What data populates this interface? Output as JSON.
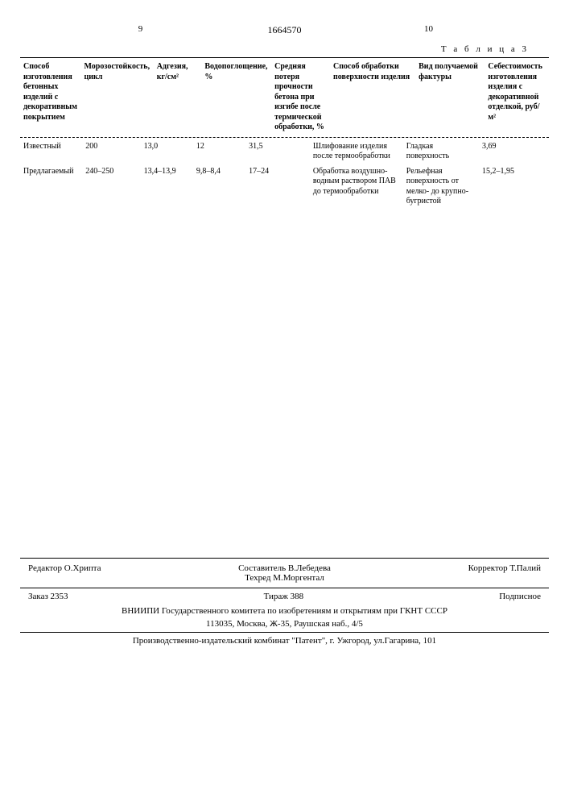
{
  "header": {
    "left_page": "9",
    "doc_number": "1664570",
    "right_page": "10"
  },
  "table": {
    "caption": "Т а б л и ц а  3",
    "columns": [
      "Способ изготовления бетонных изделий с декоративным покрытием",
      "Морозостойкость, цикл",
      "Адгезия, кг/см²",
      "Водопоглощение, %",
      "Средняя потеря прочности бетона при изгибе после термической обработки, %",
      "Способ обработки поверхности изделия",
      "Вид получаемой фактуры",
      "Себестоимость изготовления изделия с декоративной отделкой, руб/м²"
    ],
    "rows": [
      {
        "c0": "Известный",
        "c1": "200",
        "c2": "13,0",
        "c3": "12",
        "c4": "31,5",
        "c5": "Шлифование изделия после термообработки",
        "c6": "Гладкая поверхность",
        "c7": "3,69"
      },
      {
        "c0": "Предлагаемый",
        "c1": "240–250",
        "c2": "13,4–13,9",
        "c3": "9,8–8,4",
        "c4": "17–24",
        "c5": "Обработка воздушно-водным раствором ПАВ до термообработки",
        "c6": "Рельефная поверхность от мелко- до крупно-бугристой",
        "c7": "15,2–1,95"
      }
    ]
  },
  "footer": {
    "editor": "Редактор  О.Хрипта",
    "composer": "Составитель  В.Лебедева",
    "tech_editor": "Техред М.Моргентал",
    "corrector": "Корректор  Т.Палий",
    "order": "Заказ 2353",
    "tirazh": "Тираж 388",
    "subscr": "Подписное",
    "org1": "ВНИИПИ Государственного комитета по изобретениям и открытиям при ГКНТ СССР",
    "org2": "113035, Москва, Ж-35, Раушская наб., 4/5",
    "print": "Производственно-издательский комбинат \"Патент\", г. Ужгород, ул.Гагарина, 101"
  }
}
